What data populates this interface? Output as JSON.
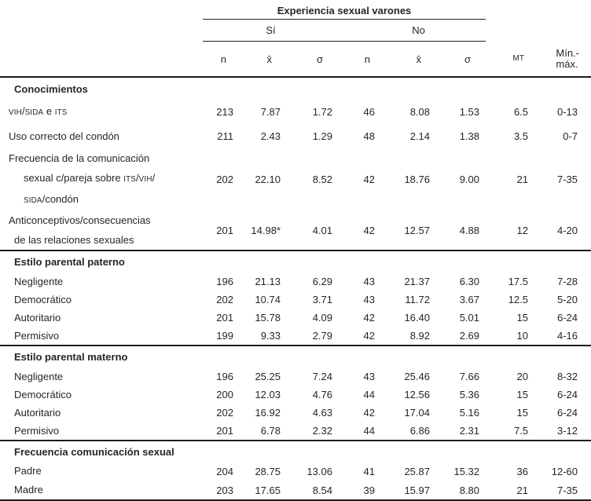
{
  "header": {
    "title": "Experiencia sexual varones",
    "group_yes": "Sí",
    "group_no": "No",
    "cols": {
      "n_si": "n",
      "mean_si": "x̄",
      "sigma_si": "σ",
      "n_no": "n",
      "mean_no": "x̄",
      "sigma_no": "σ",
      "mt": "MT",
      "minmax1": "Mín.-",
      "minmax2": "máx."
    }
  },
  "sections": [
    {
      "header": "Conocimientos",
      "rows": [
        {
          "lines": [
            {
              "ind": 0,
              "segs": [
                [
                  "VIH",
                  1
                ],
                [
                  "/",
                  0
                ],
                [
                  "SIDA",
                  1
                ],
                [
                  " e ",
                  0
                ],
                [
                  "ITS",
                  1
                ]
              ]
            }
          ],
          "values": [
            "213",
            "7.87",
            "1.72",
            "46",
            "8.08",
            "1.53",
            "6.5",
            "0-13"
          ]
        },
        {
          "lines": [
            {
              "ind": 0,
              "segs": [
                [
                  "Uso correcto del condón",
                  0
                ]
              ]
            }
          ],
          "values": [
            "211",
            "2.43",
            "1.29",
            "48",
            "2.14",
            "1.38",
            "3.5",
            "0-7"
          ]
        },
        {
          "lines": [
            {
              "ind": 0,
              "segs": [
                [
                  "Frecuencia de la comunicación",
                  0
                ]
              ]
            },
            {
              "ind": 2,
              "segs": [
                [
                  "sexual c/pareja sobre ",
                  0
                ],
                [
                  "ITS",
                  1
                ],
                [
                  "/",
                  0
                ],
                [
                  "VIH",
                  1
                ],
                [
                  "/",
                  0
                ]
              ]
            },
            {
              "ind": 2,
              "segs": [
                [
                  "SIDA",
                  1
                ],
                [
                  "/condón",
                  0
                ]
              ]
            }
          ],
          "values": [
            "202",
            "22.10",
            "8.52",
            "42",
            "18.76",
            "9.00",
            "21",
            "7-35"
          ]
        },
        {
          "lines": [
            {
              "ind": 0,
              "segs": [
                [
                  "Anticonceptivos/consecuencias",
                  0
                ]
              ]
            },
            {
              "ind": 1,
              "segs": [
                [
                  "de las relaciones sexuales",
                  0
                ]
              ]
            }
          ],
          "values": [
            "201",
            "14.98*",
            "4.01",
            "42",
            "12.57",
            "4.88",
            "12",
            "4-20"
          ]
        }
      ]
    },
    {
      "header": "Estilo parental paterno",
      "rows": [
        {
          "lines": [
            {
              "ind": 1,
              "segs": [
                [
                  "Negligente",
                  0
                ]
              ]
            }
          ],
          "values": [
            "196",
            "21.13",
            "6.29",
            "43",
            "21.37",
            "6.30",
            "17.5",
            "7-28"
          ]
        },
        {
          "lines": [
            {
              "ind": 1,
              "segs": [
                [
                  "Democrático",
                  0
                ]
              ]
            }
          ],
          "values": [
            "202",
            "10.74",
            "3.71",
            "43",
            "11.72",
            "3.67",
            "12.5",
            "5-20"
          ]
        },
        {
          "lines": [
            {
              "ind": 1,
              "segs": [
                [
                  "Autoritario",
                  0
                ]
              ]
            }
          ],
          "values": [
            "201",
            "15.78",
            "4.09",
            "42",
            "16.40",
            "5.01",
            "15",
            "6-24"
          ]
        },
        {
          "lines": [
            {
              "ind": 1,
              "segs": [
                [
                  "Permisivo",
                  0
                ]
              ]
            }
          ],
          "values": [
            "199",
            "9.33",
            "2.79",
            "42",
            "8.92",
            "2.69",
            "10",
            "4-16"
          ]
        }
      ]
    },
    {
      "header": "Estilo parental materno",
      "rows": [
        {
          "lines": [
            {
              "ind": 1,
              "segs": [
                [
                  "Negligente",
                  0
                ]
              ]
            }
          ],
          "values": [
            "196",
            "25.25",
            "7.24",
            "43",
            "25.46",
            "7.66",
            "20",
            "8-32"
          ]
        },
        {
          "lines": [
            {
              "ind": 1,
              "segs": [
                [
                  "Democrático",
                  0
                ]
              ]
            }
          ],
          "values": [
            "200",
            "12.03",
            "4.76",
            "44",
            "12.56",
            "5.36",
            "15",
            "6-24"
          ]
        },
        {
          "lines": [
            {
              "ind": 1,
              "segs": [
                [
                  "Autoritario",
                  0
                ]
              ]
            }
          ],
          "values": [
            "202",
            "16.92",
            "4.63",
            "42",
            "17.04",
            "5.16",
            "15",
            "6-24"
          ]
        },
        {
          "lines": [
            {
              "ind": 1,
              "segs": [
                [
                  "Permisivo",
                  0
                ]
              ]
            }
          ],
          "values": [
            "201",
            "6.78",
            "2.32",
            "44",
            "6.86",
            "2.31",
            "7.5",
            "3-12"
          ]
        }
      ]
    },
    {
      "header": "Frecuencia comunicación sexual",
      "rows": [
        {
          "lines": [
            {
              "ind": 1,
              "segs": [
                [
                  "Padre",
                  0
                ]
              ]
            }
          ],
          "values": [
            "204",
            "28.75",
            "13.06",
            "41",
            "25.87",
            "15.32",
            "36",
            "12-60"
          ]
        },
        {
          "lines": [
            {
              "ind": 1,
              "segs": [
                [
                  "Madre",
                  0
                ]
              ]
            }
          ],
          "values": [
            "203",
            "17.65",
            "8.54",
            "39",
            "15.97",
            "8.80",
            "21",
            "7-35"
          ]
        }
      ]
    }
  ],
  "colors": {
    "text": "#262626",
    "rule_thick": "#1c1c1c",
    "rule_thin": "#232323",
    "background": "#ffffff"
  }
}
